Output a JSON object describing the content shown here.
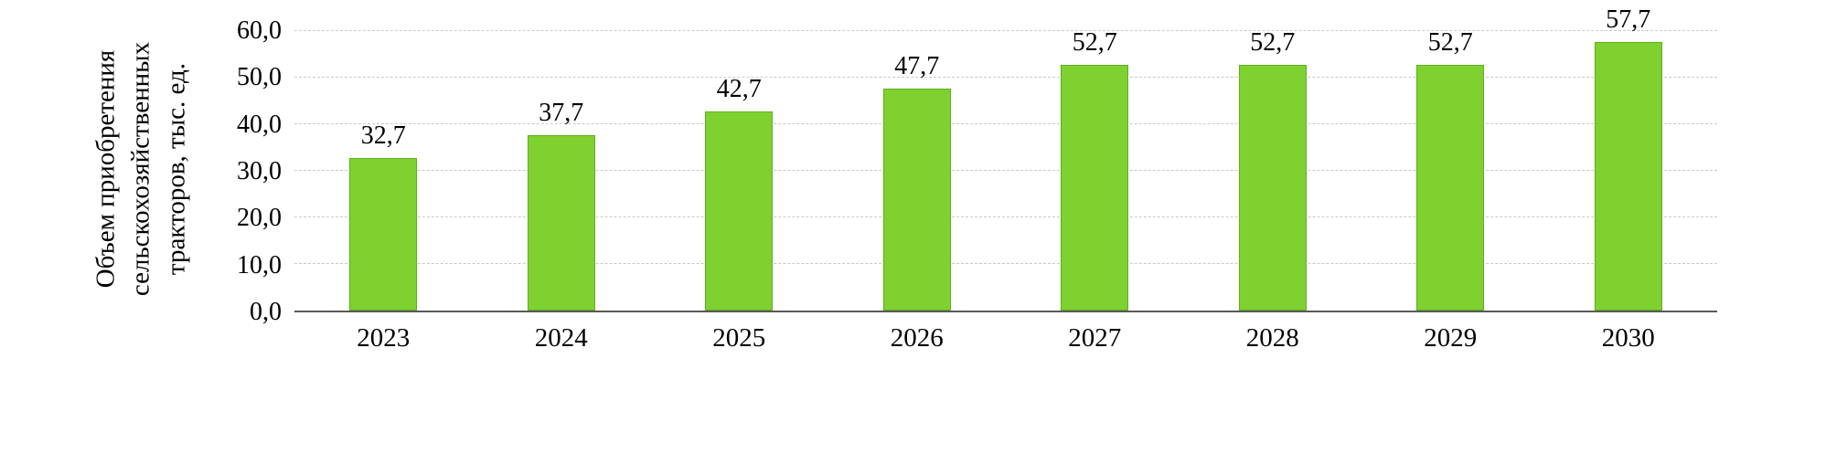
{
  "chart_data": {
    "type": "bar",
    "title": "",
    "ylabel_lines": [
      "Объем приобретения",
      "сельскохозяйственных",
      "тракторов, тыс. ед."
    ],
    "categories": [
      "2023",
      "2024",
      "2025",
      "2026",
      "2027",
      "2028",
      "2029",
      "2030"
    ],
    "values": [
      32.7,
      37.7,
      42.7,
      47.7,
      52.7,
      52.7,
      52.7,
      57.7
    ],
    "value_labels": [
      "32,7",
      "37,7",
      "42,7",
      "47,7",
      "52,7",
      "52,7",
      "52,7",
      "57,7"
    ],
    "ylim": [
      0,
      60
    ],
    "yticks": [
      {
        "value": 0,
        "label": "0,0"
      },
      {
        "value": 10,
        "label": "10,0"
      },
      {
        "value": 20,
        "label": "20,0"
      },
      {
        "value": 30,
        "label": "30,0"
      },
      {
        "value": 40,
        "label": "40,0"
      },
      {
        "value": 50,
        "label": "50,0"
      },
      {
        "value": 60,
        "label": "60,0"
      }
    ],
    "grid": "dashed-horizontal",
    "legend": "none",
    "bar_color": "#7ed12f",
    "bar_border_color": "#5fae1f",
    "axis_line_color": "#595959",
    "gridline_color": "#c9c9c9",
    "text_color": "#000000"
  }
}
